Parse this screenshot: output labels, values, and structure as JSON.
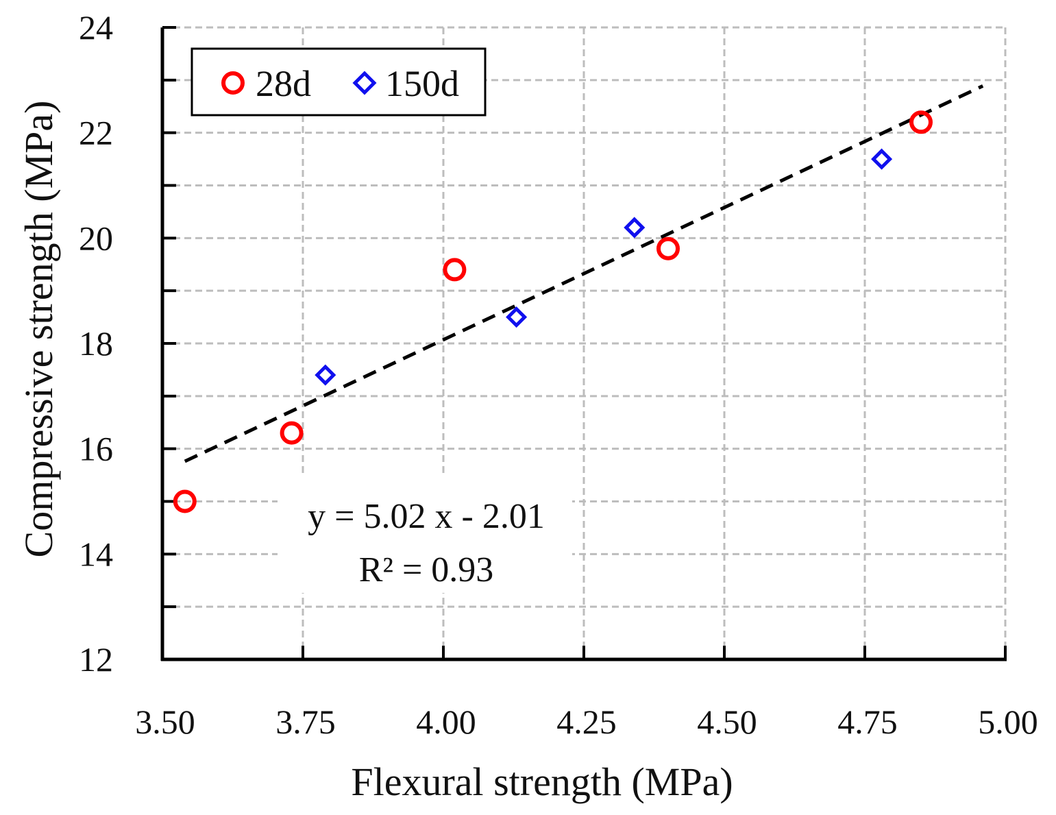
{
  "chart_data": {
    "type": "scatter",
    "title": "",
    "xlabel": "Flexural strength (MPa)",
    "ylabel": "Compressive strength (MPa)",
    "xlim": [
      3.5,
      5.0
    ],
    "ylim": [
      12,
      24
    ],
    "x_ticks": [
      3.5,
      3.75,
      4.0,
      4.25,
      4.5,
      4.75,
      5.0
    ],
    "x_tick_labels": [
      "3.50",
      "3.75",
      "4.00",
      "4.25",
      "4.50",
      "4.75",
      "5.00"
    ],
    "y_ticks": [
      12,
      14,
      16,
      18,
      20,
      22,
      24
    ],
    "y_tick_labels": [
      "12",
      "14",
      "16",
      "18",
      "20",
      "22",
      "24"
    ],
    "grid": true,
    "legend_position": "top-left",
    "series": [
      {
        "name": "28d",
        "marker": "circle",
        "color": "#ff0000",
        "points": [
          {
            "x": 3.54,
            "y": 15.0
          },
          {
            "x": 3.73,
            "y": 16.3
          },
          {
            "x": 4.02,
            "y": 19.4
          },
          {
            "x": 4.4,
            "y": 19.8
          },
          {
            "x": 4.85,
            "y": 22.2
          }
        ]
      },
      {
        "name": "150d",
        "marker": "diamond",
        "color": "#1010ee",
        "points": [
          {
            "x": 3.79,
            "y": 17.4
          },
          {
            "x": 4.13,
            "y": 18.5
          },
          {
            "x": 4.34,
            "y": 20.2
          },
          {
            "x": 4.78,
            "y": 21.5
          }
        ]
      }
    ],
    "trendline": {
      "style": "dashed",
      "color": "#000000",
      "slope": 5.02,
      "intercept": -2.01,
      "x_start": 3.54,
      "x_end": 4.96
    },
    "annotations": {
      "equation": "y = 5.02 x - 2.01",
      "r_squared": "R² = 0.93"
    }
  }
}
